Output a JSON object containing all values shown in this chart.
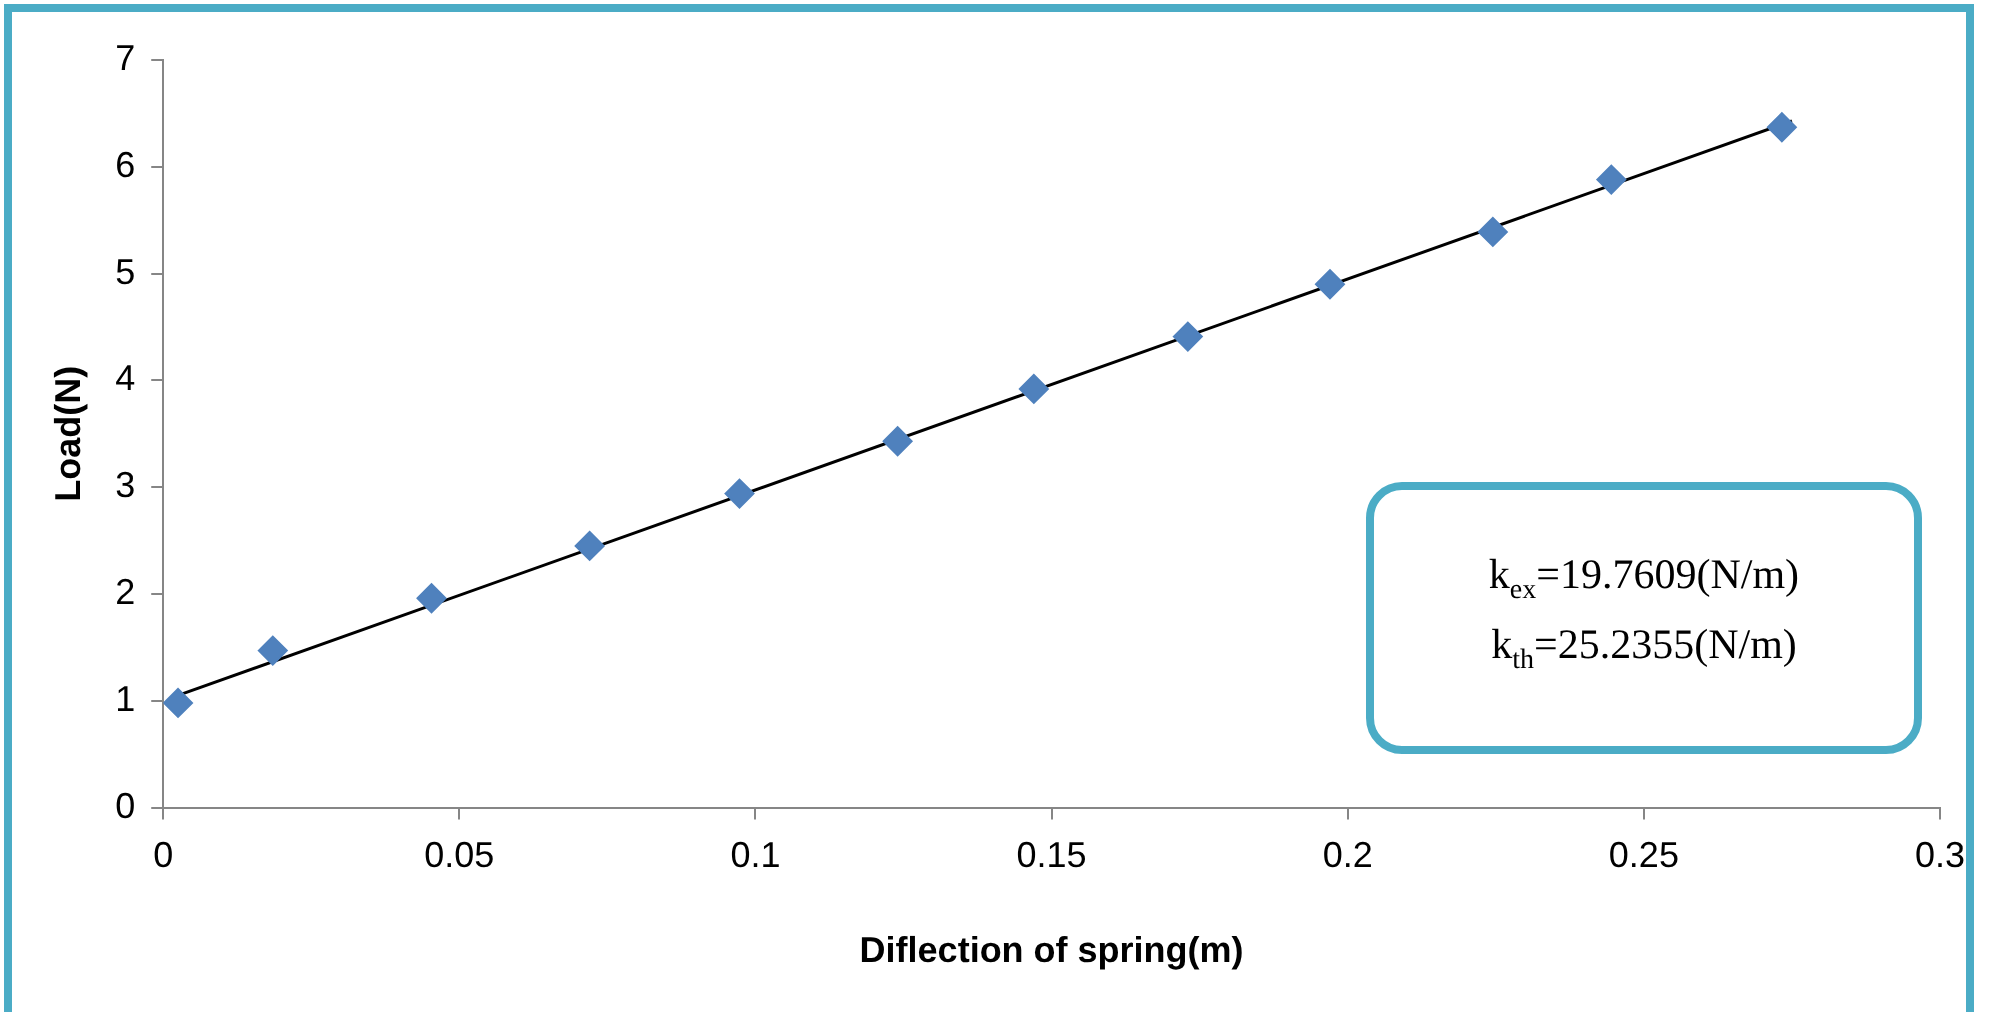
{
  "chart_data": {
    "type": "scatter",
    "xlabel": "Diflection of spring(m)",
    "ylabel": "Load(N)",
    "xlim": [
      0,
      0.3
    ],
    "xticks": [
      0,
      0.05,
      0.1,
      0.15,
      0.2,
      0.25,
      0.3
    ],
    "ylim": [
      0,
      7
    ],
    "yticks": [
      0,
      1,
      2,
      3,
      4,
      5,
      6,
      7
    ],
    "grid": false,
    "legend": false,
    "series": [
      {
        "type": "scatter",
        "marker": "diamond",
        "color": "#4f81bd",
        "x": [
          0.0025,
          0.0185,
          0.0453,
          0.072,
          0.0973,
          0.124,
          0.147,
          0.173,
          0.197,
          0.2245,
          0.2445,
          0.2733
        ],
        "values": [
          0.98,
          1.47,
          1.96,
          2.45,
          2.94,
          3.43,
          3.92,
          4.41,
          4.9,
          5.39,
          5.88,
          6.37
        ]
      },
      {
        "type": "line",
        "marker": "none",
        "line_style": "solid",
        "color": "#000000",
        "x": [
          0.0025,
          0.275
        ],
        "values": [
          1.05,
          6.43
        ]
      }
    ],
    "annotations": [
      "k$_{ex}$=19.7609(N/m)",
      "k$_{th}$=25.2355(N/m)"
    ]
  }
}
